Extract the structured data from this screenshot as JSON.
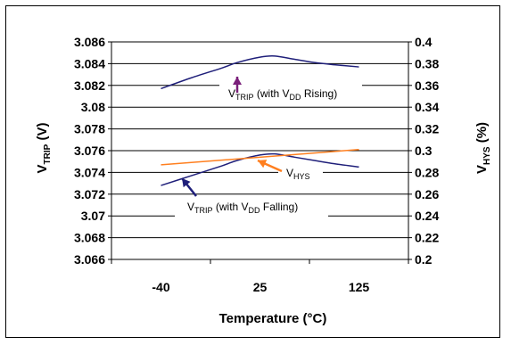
{
  "chart_data": {
    "type": "line",
    "x_categories": [
      "-40",
      "25",
      "125"
    ],
    "xlabel": "Temperature (°C)",
    "ylabel_left": {
      "main": "V",
      "sub": "TRIP",
      "tail": " (V)"
    },
    "ylabel_right": {
      "main": "V",
      "sub": "HYS",
      "tail": " (%)"
    },
    "ylim_left": [
      3.066,
      3.086
    ],
    "ylim_right": [
      0.2,
      0.4
    ],
    "yticks_left": [
      "3.086",
      "3.084",
      "3.082",
      "3.08",
      "3.078",
      "3.076",
      "3.074",
      "3.072",
      "3.07",
      "3.068",
      "3.066"
    ],
    "yticks_right": [
      "0.4",
      "0.38",
      "0.36",
      "0.34",
      "0.32",
      "0.3",
      "0.28",
      "0.26",
      "0.24",
      "0.22",
      "0.2"
    ],
    "grid": true,
    "series": [
      {
        "axis": "left",
        "color": "#1f1f7a",
        "x": [
          -40,
          -20,
          0,
          10,
          25,
          40,
          60,
          80,
          100,
          125
        ],
        "values": [
          3.0817,
          3.0827,
          3.0836,
          3.0841,
          3.0846,
          3.0847,
          3.0844,
          3.0841,
          3.0839,
          3.0837
        ]
      },
      {
        "axis": "left",
        "color": "#1f1f7a",
        "x": [
          -40,
          -20,
          0,
          10,
          25,
          40,
          60,
          80,
          100,
          125
        ],
        "values": [
          3.0728,
          3.0737,
          3.0746,
          3.0751,
          3.0756,
          3.0757,
          3.0754,
          3.0751,
          3.0748,
          3.0745
        ]
      },
      {
        "axis": "right",
        "color": "#ff7f1f",
        "x": [
          -40,
          125
        ],
        "values": [
          0.287,
          0.301
        ]
      }
    ],
    "annotations": [
      {
        "id": "rising",
        "main": "V",
        "sub": "TRIP",
        "mid": " (with V",
        "sub2": "DD",
        "tail": " Rising)",
        "arrow_color": "#7a1f7a"
      },
      {
        "id": "hys",
        "main": "V",
        "sub": "HYS",
        "arrow_color": "#ff7f1f"
      },
      {
        "id": "falling",
        "main": "V",
        "sub": "TRIP",
        "mid": " (with V",
        "sub2": "DD",
        "tail": " Falling)",
        "arrow_color": "#1f1f7a"
      }
    ]
  }
}
